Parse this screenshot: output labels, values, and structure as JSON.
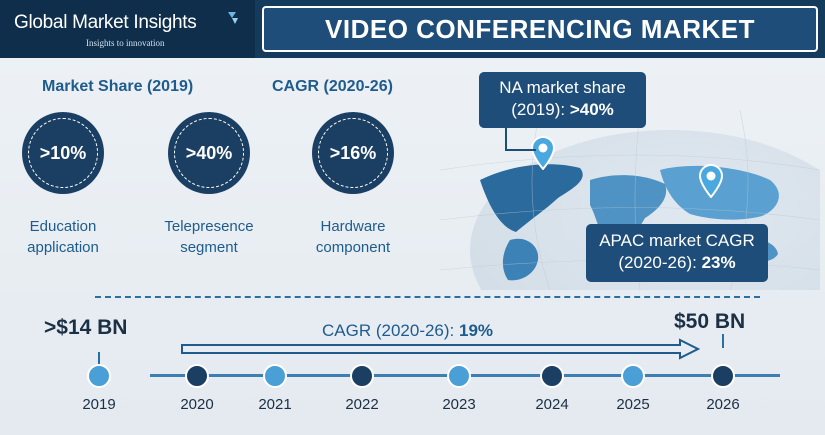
{
  "header": {
    "brand": "Global Market Insights",
    "tagline": "Insights to innovation",
    "title": "VIDEO CONFERENCING MARKET"
  },
  "stats": {
    "market_share_title": "Market Share (2019)",
    "cagr_title": "CAGR (2020-26)",
    "items": [
      {
        "value": ">10%",
        "label_line1": "Education",
        "label_line2": "application"
      },
      {
        "value": ">40%",
        "label_line1": "Telepresence",
        "label_line2": "segment"
      },
      {
        "value": ">16%",
        "label_line1": "Hardware",
        "label_line2": "component"
      }
    ]
  },
  "map": {
    "na_line1": "NA market share",
    "na_line2_prefix": "(2019): ",
    "na_value": ">40%",
    "apac_line1": "APAC market CAGR",
    "apac_line2_prefix": "(2020-26): ",
    "apac_value": "23%"
  },
  "timeline": {
    "start_value": ">$14 BN",
    "end_value": "$50 BN",
    "cagr_prefix": "CAGR (2020-26): ",
    "cagr_value": "19%",
    "years": [
      "2019",
      "2020",
      "2021",
      "2022",
      "2023",
      "2024",
      "2025",
      "2026"
    ]
  },
  "colors": {
    "navy": "#143a5c",
    "accent_blue": "#1e5c8d",
    "light_dot": "#4a9fd6",
    "dark_dot": "#1b3f63"
  }
}
